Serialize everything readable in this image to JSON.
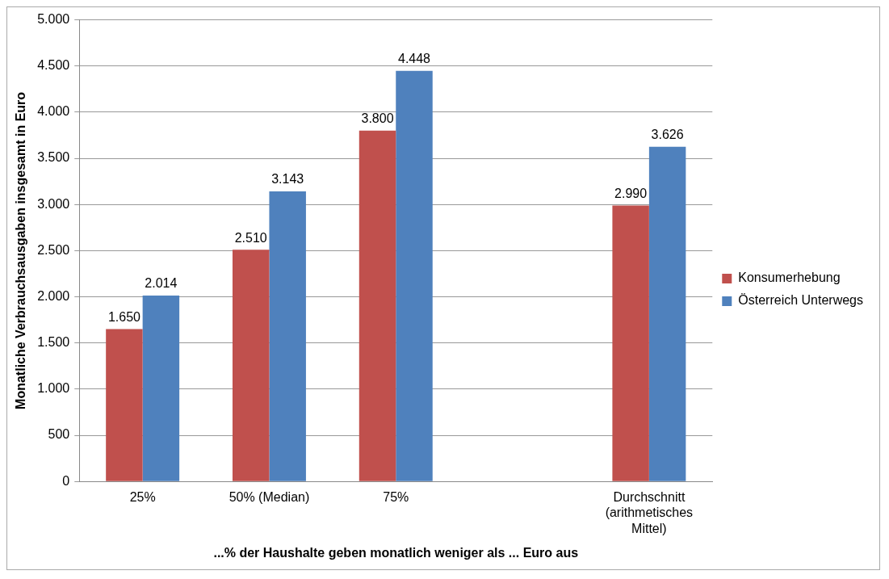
{
  "chart_data": {
    "type": "bar",
    "xlabel": "...% der Haushalte geben monatlich weniger als ... Euro aus",
    "ylabel": "Monatliche Verbrauchsausgaben insgesamt in Euro",
    "categories": [
      "25%",
      "50% (Median)",
      "75%",
      null,
      "Durchschnitt (arithmetisches Mittel)"
    ],
    "series": [
      {
        "name": "Konsumerhebung",
        "color": "#c0504d",
        "values": [
          1650,
          2510,
          3800,
          null,
          2990
        ],
        "value_labels": [
          "1.650",
          "2.510",
          "3.800",
          null,
          "2.990"
        ]
      },
      {
        "name": "Österreich Unterwegs",
        "color": "#4f81bd",
        "values": [
          2014,
          3143,
          4448,
          null,
          3626
        ],
        "value_labels": [
          "2.014",
          "3.143",
          "4.448",
          null,
          "3.626"
        ]
      }
    ],
    "ylim": [
      0,
      5000
    ],
    "yticks": [
      {
        "value": 0,
        "label": "0"
      },
      {
        "value": 500,
        "label": "500"
      },
      {
        "value": 1000,
        "label": "1.000"
      },
      {
        "value": 1500,
        "label": "1.500"
      },
      {
        "value": 2000,
        "label": "2.000"
      },
      {
        "value": 2500,
        "label": "2.500"
      },
      {
        "value": 3000,
        "label": "3.000"
      },
      {
        "value": 3500,
        "label": "3.500"
      },
      {
        "value": 4000,
        "label": "4.000"
      },
      {
        "value": 4500,
        "label": "4.500"
      },
      {
        "value": 5000,
        "label": "5.000"
      }
    ],
    "grid": "y",
    "legend": "right"
  }
}
